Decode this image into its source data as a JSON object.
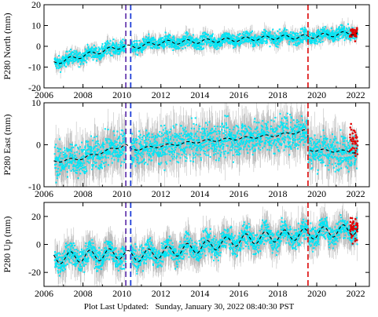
{
  "footer": {
    "label": "Plot Last Updated:",
    "timestamp": "Sunday, January 30, 2022 08:40:30 PST"
  },
  "colors": {
    "error_bars": "#b4b4b4",
    "points": "#00e5f5",
    "model": "#000000",
    "recent": "#e00000",
    "offset_purple": "#6a3fb0",
    "offset_blue": "#1f3fd8",
    "offset_red": "#e02020"
  },
  "chart_data": [
    {
      "type": "scatter",
      "ylabel": "P280 North (mm)",
      "xlim": [
        2006,
        2022.7
      ],
      "ylim": [
        -20,
        20
      ],
      "xticks": [
        2006,
        2008,
        2010,
        2012,
        2014,
        2016,
        2018,
        2020,
        2022
      ],
      "yticks": [
        -20,
        -10,
        0,
        10,
        20
      ],
      "show_x_tick_labels": true,
      "grid": false,
      "offset_lines": [
        {
          "x": 2010.2,
          "color": "purple"
        },
        {
          "x": 2010.45,
          "color": "blue"
        },
        {
          "x": 2019.55,
          "color": "red"
        }
      ],
      "model": {
        "x": [
          2006.5,
          2008,
          2010,
          2010.45,
          2012,
          2014,
          2016,
          2018,
          2019.55,
          2022.1
        ],
        "y": [
          -8,
          -4.5,
          0,
          -0.5,
          1.8,
          2.4,
          3.3,
          4.3,
          4.6,
          6.6
        ]
      },
      "seasonal_amplitude": 1.0,
      "point_spread": 1.6,
      "error_bar": 2.8,
      "recent": {
        "x_start": 2021.7,
        "x_end": 2022.1,
        "y_center": 6.2,
        "spread": 1.5
      }
    },
    {
      "type": "scatter",
      "ylabel": "P280 East (mm)",
      "xlim": [
        2006,
        2022.7
      ],
      "ylim": [
        -10,
        10
      ],
      "xticks": [
        2006,
        2008,
        2010,
        2012,
        2014,
        2016,
        2018,
        2020,
        2022
      ],
      "yticks": [
        -10,
        0,
        10
      ],
      "show_x_tick_labels": true,
      "grid": false,
      "offset_lines": [
        {
          "x": 2010.2,
          "color": "purple"
        },
        {
          "x": 2010.45,
          "color": "blue"
        },
        {
          "x": 2019.55,
          "color": "red"
        }
      ],
      "model": {
        "x": [
          2006.5,
          2008,
          2010.2,
          2010.45,
          2012,
          2014,
          2016,
          2018,
          2019.55,
          2019.56,
          2022.1
        ],
        "y": [
          -4,
          -3.2,
          0,
          -1.2,
          -0.3,
          0.8,
          1.5,
          2.3,
          3.4,
          -1.2,
          -1.7
        ]
      },
      "seasonal_amplitude": 0.3,
      "point_spread": 2.0,
      "error_bar": 4.0,
      "recent": {
        "x_start": 2021.7,
        "x_end": 2022.1,
        "y_center": 0.8,
        "spread": 1.8
      }
    },
    {
      "type": "scatter",
      "ylabel": "P280 Up (mm)",
      "xlim": [
        2006,
        2022.7
      ],
      "ylim": [
        -30,
        30
      ],
      "xticks": [
        2006,
        2008,
        2010,
        2012,
        2014,
        2016,
        2018,
        2020,
        2022
      ],
      "yticks": [
        -20,
        0,
        20
      ],
      "show_x_tick_labels": true,
      "grid": false,
      "offset_lines": [
        {
          "x": 2010.2,
          "color": "purple"
        },
        {
          "x": 2010.45,
          "color": "blue"
        },
        {
          "x": 2019.55,
          "color": "red"
        }
      ],
      "model": {
        "x": [
          2006.5,
          2008,
          2010,
          2010.45,
          2012,
          2014,
          2016,
          2018,
          2019.55,
          2022.1
        ],
        "y": [
          -10,
          -8.5,
          -6.5,
          -9,
          -6,
          -2,
          3,
          6,
          7.5,
          11
        ]
      },
      "seasonal_amplitude": 4.0,
      "point_spread": 4.0,
      "error_bar": 9.0,
      "recent": {
        "x_start": 2021.7,
        "x_end": 2022.1,
        "y_center": 12,
        "spread": 4
      }
    }
  ]
}
